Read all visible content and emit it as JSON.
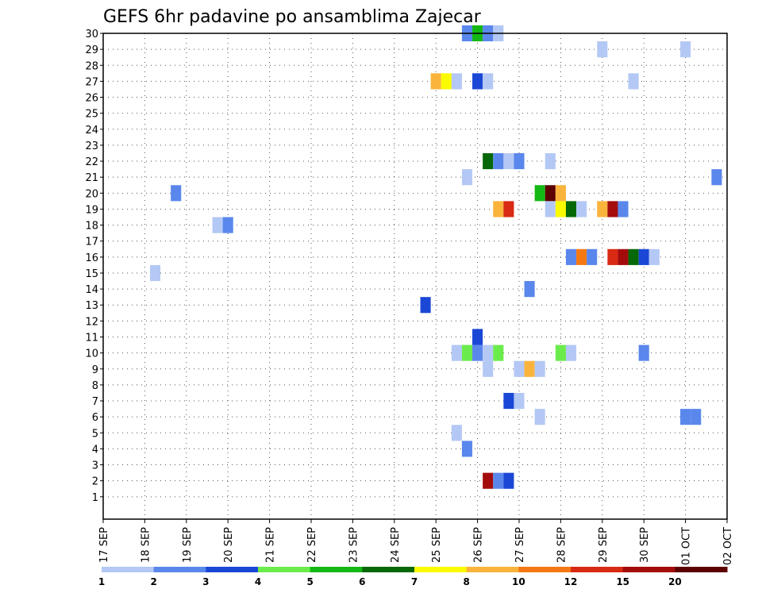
{
  "chart_data": {
    "type": "heatmap",
    "title": "GEFS 6hr padavine po ansamblima Zajecar",
    "xlabel": "",
    "ylabel": "",
    "x_tick_labels": [
      "17 SEP",
      "18 SEP",
      "19 SEP",
      "20 SEP",
      "21 SEP",
      "22 SEP",
      "23 SEP",
      "24 SEP",
      "25 SEP",
      "26 SEP",
      "27 SEP",
      "28 SEP",
      "29 SEP",
      "30 SEP",
      "01 OCT",
      "02 OCT"
    ],
    "x_unit": "days from 17 SEP 00Z, 6-hour steps",
    "y_tick_labels": [
      "1",
      "2",
      "3",
      "4",
      "5",
      "6",
      "7",
      "8",
      "9",
      "10",
      "11",
      "12",
      "13",
      "14",
      "15",
      "16",
      "17",
      "18",
      "19",
      "20",
      "21",
      "22",
      "23",
      "24",
      "25",
      "26",
      "27",
      "28",
      "29",
      "30"
    ],
    "xlim": [
      0,
      15
    ],
    "ylim": [
      0,
      30
    ],
    "grid": true,
    "colorbar": {
      "position": "bottom",
      "tick_labels": [
        "1",
        "2",
        "3",
        "4",
        "5",
        "6",
        "7",
        "8",
        "10",
        "12",
        "15",
        "20"
      ],
      "colors": [
        "#b4c8f5",
        "#5a87ec",
        "#1a47d6",
        "#6cec4c",
        "#14b814",
        "#066806",
        "#fafa00",
        "#fab43c",
        "#f57814",
        "#d92a14",
        "#a40c0c",
        "#5c0000"
      ]
    },
    "cells": [
      {
        "member": 30,
        "t": 8.75,
        "level": 2
      },
      {
        "member": 30,
        "t": 9.0,
        "level": 5
      },
      {
        "member": 30,
        "t": 9.25,
        "level": 2
      },
      {
        "member": 30,
        "t": 9.5,
        "level": 1
      },
      {
        "member": 29,
        "t": 12.0,
        "level": 1
      },
      {
        "member": 29,
        "t": 14.0,
        "level": 1
      },
      {
        "member": 27,
        "t": 8.0,
        "level": 8
      },
      {
        "member": 27,
        "t": 8.25,
        "level": 7
      },
      {
        "member": 27,
        "t": 8.5,
        "level": 1
      },
      {
        "member": 27,
        "t": 9.0,
        "level": 3
      },
      {
        "member": 27,
        "t": 9.25,
        "level": 1
      },
      {
        "member": 27,
        "t": 12.75,
        "level": 1
      },
      {
        "member": 22,
        "t": 9.25,
        "level": 6
      },
      {
        "member": 22,
        "t": 9.5,
        "level": 2
      },
      {
        "member": 22,
        "t": 9.75,
        "level": 1
      },
      {
        "member": 22,
        "t": 10.0,
        "level": 2
      },
      {
        "member": 22,
        "t": 10.75,
        "level": 1
      },
      {
        "member": 21,
        "t": 8.75,
        "level": 1
      },
      {
        "member": 21,
        "t": 14.75,
        "level": 2
      },
      {
        "member": 20,
        "t": 1.75,
        "level": 2
      },
      {
        "member": 20,
        "t": 10.5,
        "level": 5
      },
      {
        "member": 20,
        "t": 10.75,
        "level": 12
      },
      {
        "member": 20,
        "t": 11.0,
        "level": 8
      },
      {
        "member": 19,
        "t": 9.5,
        "level": 8
      },
      {
        "member": 19,
        "t": 9.75,
        "level": 10
      },
      {
        "member": 19,
        "t": 10.75,
        "level": 1
      },
      {
        "member": 19,
        "t": 11.0,
        "level": 7
      },
      {
        "member": 19,
        "t": 11.25,
        "level": 6
      },
      {
        "member": 19,
        "t": 11.5,
        "level": 1
      },
      {
        "member": 19,
        "t": 12.0,
        "level": 8
      },
      {
        "member": 19,
        "t": 12.25,
        "level": 11
      },
      {
        "member": 19,
        "t": 12.5,
        "level": 2
      },
      {
        "member": 18,
        "t": 2.75,
        "level": 1
      },
      {
        "member": 18,
        "t": 3.0,
        "level": 2
      },
      {
        "member": 16,
        "t": 11.25,
        "level": 2
      },
      {
        "member": 16,
        "t": 11.5,
        "level": 9
      },
      {
        "member": 16,
        "t": 11.75,
        "level": 2
      },
      {
        "member": 16,
        "t": 12.25,
        "level": 10
      },
      {
        "member": 16,
        "t": 12.5,
        "level": 11
      },
      {
        "member": 16,
        "t": 12.75,
        "level": 6
      },
      {
        "member": 16,
        "t": 13.0,
        "level": 3
      },
      {
        "member": 16,
        "t": 13.25,
        "level": 1
      },
      {
        "member": 15,
        "t": 1.25,
        "level": 1
      },
      {
        "member": 14,
        "t": 10.25,
        "level": 2
      },
      {
        "member": 13,
        "t": 7.75,
        "level": 3
      },
      {
        "member": 11,
        "t": 9.0,
        "level": 3
      },
      {
        "member": 10,
        "t": 8.5,
        "level": 1
      },
      {
        "member": 10,
        "t": 8.75,
        "level": 4
      },
      {
        "member": 10,
        "t": 9.0,
        "level": 2
      },
      {
        "member": 10,
        "t": 9.25,
        "level": 1
      },
      {
        "member": 10,
        "t": 9.5,
        "level": 4
      },
      {
        "member": 10,
        "t": 11.0,
        "level": 4
      },
      {
        "member": 10,
        "t": 11.25,
        "level": 1
      },
      {
        "member": 10,
        "t": 13.0,
        "level": 2
      },
      {
        "member": 9,
        "t": 9.25,
        "level": 1
      },
      {
        "member": 9,
        "t": 10.0,
        "level": 1
      },
      {
        "member": 9,
        "t": 10.25,
        "level": 8
      },
      {
        "member": 9,
        "t": 10.5,
        "level": 1
      },
      {
        "member": 7,
        "t": 9.75,
        "level": 3
      },
      {
        "member": 7,
        "t": 10.0,
        "level": 1
      },
      {
        "member": 6,
        "t": 10.5,
        "level": 1
      },
      {
        "member": 6,
        "t": 14.0,
        "level": 2
      },
      {
        "member": 6,
        "t": 14.25,
        "level": 2
      },
      {
        "member": 5,
        "t": 8.5,
        "level": 1
      },
      {
        "member": 4,
        "t": 8.75,
        "level": 2
      },
      {
        "member": 2,
        "t": 9.25,
        "level": 11
      },
      {
        "member": 2,
        "t": 9.5,
        "level": 2
      },
      {
        "member": 2,
        "t": 9.75,
        "level": 3
      }
    ]
  }
}
